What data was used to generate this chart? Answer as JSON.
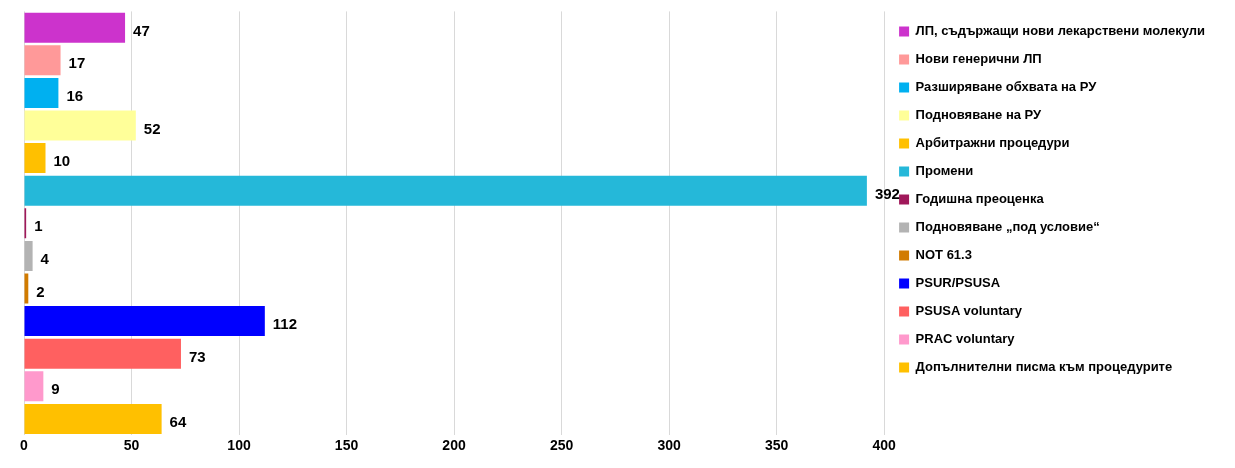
{
  "chart_data": {
    "type": "bar",
    "orientation": "horizontal",
    "categories": [
      null,
      null,
      null,
      null,
      null,
      null,
      null,
      null,
      null,
      null,
      null,
      null,
      null
    ],
    "series": [
      {
        "name": "ЛП, съдържащи нови лекарствени молекули",
        "color": "#cc33cc",
        "values": [
          47,
          null,
          null,
          null,
          null,
          null,
          null,
          null,
          null,
          null,
          null,
          null,
          null
        ]
      },
      {
        "name": "Нови генерични ЛП",
        "color": "#ff9999",
        "values": [
          null,
          17,
          null,
          null,
          null,
          null,
          null,
          null,
          null,
          null,
          null,
          null,
          null
        ]
      },
      {
        "name": "Разширяване обхвата на РУ",
        "color": "#00b0f0",
        "values": [
          null,
          null,
          16,
          null,
          null,
          null,
          null,
          null,
          null,
          null,
          null,
          null,
          null
        ]
      },
      {
        "name": "Подновяване на РУ",
        "color": "#ffff99",
        "values": [
          null,
          null,
          null,
          52,
          null,
          null,
          null,
          null,
          null,
          null,
          null,
          null,
          null
        ]
      },
      {
        "name": "Арбитражни процедури",
        "color": "#ffc000",
        "values": [
          null,
          null,
          null,
          null,
          10,
          null,
          null,
          null,
          null,
          null,
          null,
          null,
          null
        ]
      },
      {
        "name": "Промени",
        "color": "#25b8d9",
        "values": [
          null,
          null,
          null,
          null,
          null,
          392,
          null,
          null,
          null,
          null,
          null,
          null,
          null
        ]
      },
      {
        "name": "Годишна преоценка",
        "color": "#a0185a",
        "values": [
          null,
          null,
          null,
          null,
          null,
          null,
          1,
          null,
          null,
          null,
          null,
          null,
          null
        ]
      },
      {
        "name": "Подновяване „под условие“",
        "color": "#b3b3b3",
        "values": [
          null,
          null,
          null,
          null,
          null,
          null,
          null,
          4,
          null,
          null,
          null,
          null,
          null
        ]
      },
      {
        "name": "NOT 61.3",
        "color": "#d17b00",
        "values": [
          null,
          null,
          null,
          null,
          null,
          null,
          null,
          null,
          2,
          null,
          null,
          null,
          null
        ]
      },
      {
        "name": "PSUR/PSUSA",
        "color": "#0000ff",
        "values": [
          null,
          null,
          null,
          null,
          null,
          null,
          null,
          null,
          null,
          112,
          null,
          null,
          null
        ]
      },
      {
        "name": "PSUSA voluntary",
        "color": "#ff6060",
        "values": [
          null,
          null,
          null,
          null,
          null,
          null,
          null,
          null,
          null,
          null,
          73,
          null,
          null
        ]
      },
      {
        "name": "PRAC voluntary",
        "color": "#ff99cc",
        "values": [
          null,
          null,
          null,
          null,
          null,
          null,
          null,
          null,
          null,
          null,
          null,
          9,
          null
        ]
      },
      {
        "name": "Допълнителни писма към процедурите",
        "color": "#ffc000",
        "values": [
          null,
          null,
          null,
          null,
          null,
          null,
          null,
          null,
          null,
          null,
          null,
          null,
          64
        ]
      }
    ],
    "xlim": [
      0,
      400
    ],
    "xticks": [
      0,
      50,
      100,
      150,
      200,
      250,
      300,
      350,
      400
    ],
    "grid": "x",
    "legend": "right",
    "data_labels": true
  }
}
